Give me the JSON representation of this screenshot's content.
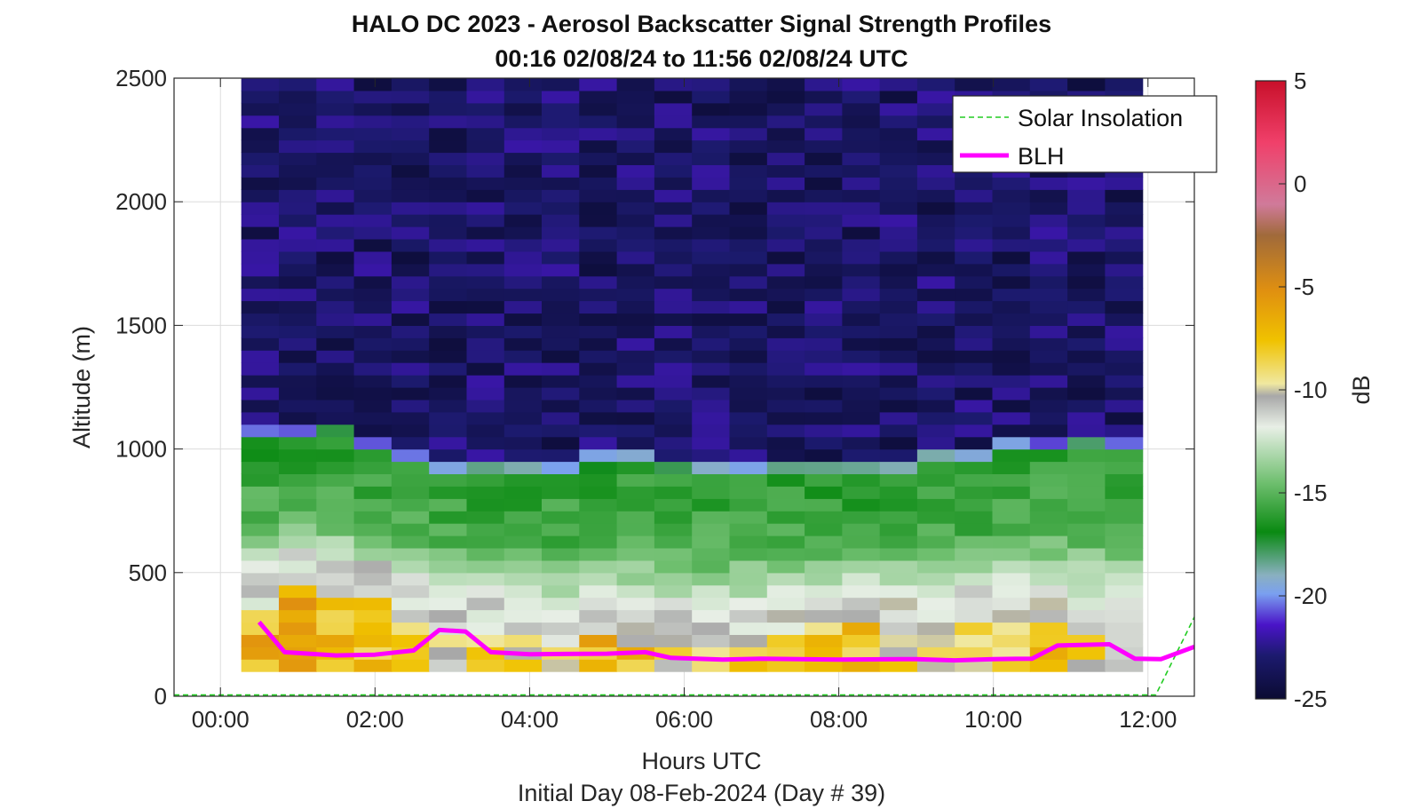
{
  "chart_data": {
    "type": "heatmap",
    "title": "HALO DC 2023 - Aerosol Backscatter Signal Strength Profiles",
    "subtitle": "00:16 02/08/24 to 11:56 02/08/24  UTC",
    "xlabel": "Hours UTC",
    "footer": "Initial Day 08-Feb-2024 (Day # 39)",
    "ylabel": "Altitude (m)",
    "colorbar_label": "dB",
    "xlim_hours": [
      -0.6,
      12.6
    ],
    "ylim": [
      0,
      2500
    ],
    "x_tick_labels": [
      "00:00",
      "02:00",
      "04:00",
      "06:00",
      "08:00",
      "10:00",
      "12:00"
    ],
    "x_ticks_hours": [
      0,
      2,
      4,
      6,
      8,
      10,
      12
    ],
    "y_ticks": [
      0,
      500,
      1000,
      1500,
      2000,
      2500
    ],
    "colorbar_range": [
      -25,
      5
    ],
    "colorbar_ticks": [
      5,
      0,
      -5,
      -10,
      -15,
      -20,
      -25
    ],
    "time_start_hours": 0.27,
    "time_end_hours": 11.93,
    "altitude_bottom": 100,
    "gate_height": 50,
    "colors": {
      "clean_air": "#161748",
      "aerosol_layer_top": "#0a8a12",
      "surface_layer": "#f0c200",
      "blh_line": "#ff00ff",
      "solar_line": "#22cc22"
    },
    "series": [
      {
        "name": "Solar Insolation",
        "style": "dashed",
        "x_hours": [
          -0.6,
          12.1,
          12.6
        ],
        "y": [
          5,
          5,
          320
        ]
      },
      {
        "name": "BLH",
        "style": "solid",
        "x_hours": [
          0.5,
          0.83,
          1.5,
          2.0,
          2.5,
          2.83,
          3.17,
          3.5,
          4.0,
          5.0,
          5.5,
          5.83,
          6.5,
          7.0,
          8.0,
          9.0,
          9.5,
          10.0,
          10.5,
          10.83,
          11.5,
          11.83,
          12.17,
          12.6
        ],
        "y": [
          300,
          178,
          165,
          168,
          185,
          268,
          262,
          178,
          170,
          172,
          178,
          155,
          148,
          152,
          148,
          150,
          145,
          150,
          152,
          205,
          210,
          152,
          150,
          200
        ]
      }
    ],
    "profile_columns": [
      {
        "top_dense": 1040,
        "top_bright": 330,
        "base_db": -7
      },
      {
        "top_dense": 1040,
        "top_bright": 420,
        "base_db": -6
      },
      {
        "top_dense": 1030,
        "top_bright": 400,
        "base_db": -7
      },
      {
        "top_dense": 1000,
        "top_bright": 360,
        "base_db": -8
      },
      {
        "top_dense": 950,
        "top_bright": 300,
        "base_db": -9
      },
      {
        "top_dense": 920,
        "top_bright": 280,
        "base_db": -10
      },
      {
        "top_dense": 900,
        "top_bright": 250,
        "base_db": -8
      },
      {
        "top_dense": 900,
        "top_bright": 230,
        "base_db": -9
      },
      {
        "top_dense": 920,
        "top_bright": 200,
        "base_db": -9
      },
      {
        "top_dense": 930,
        "top_bright": 220,
        "base_db": -7
      },
      {
        "top_dense": 950,
        "top_bright": 200,
        "base_db": -8
      },
      {
        "top_dense": 920,
        "top_bright": 200,
        "base_db": -9
      },
      {
        "top_dense": 900,
        "top_bright": 180,
        "base_db": -10
      },
      {
        "top_dense": 920,
        "top_bright": 200,
        "base_db": -9
      },
      {
        "top_dense": 900,
        "top_bright": 250,
        "base_db": -8
      },
      {
        "top_dense": 880,
        "top_bright": 260,
        "base_db": -8
      },
      {
        "top_dense": 880,
        "top_bright": 300,
        "base_db": -8
      },
      {
        "top_dense": 920,
        "top_bright": 250,
        "base_db": -9
      },
      {
        "top_dense": 950,
        "top_bright": 250,
        "base_db": -9
      },
      {
        "top_dense": 960,
        "top_bright": 280,
        "base_db": -9
      },
      {
        "top_dense": 980,
        "top_bright": 300,
        "base_db": -8
      },
      {
        "top_dense": 990,
        "top_bright": 280,
        "base_db": -8
      },
      {
        "top_dense": 990,
        "top_bright": 240,
        "base_db": -9
      },
      {
        "top_dense": 990,
        "top_bright": 200,
        "base_db": -10
      }
    ],
    "legend_position": "top-right",
    "grid": true
  }
}
